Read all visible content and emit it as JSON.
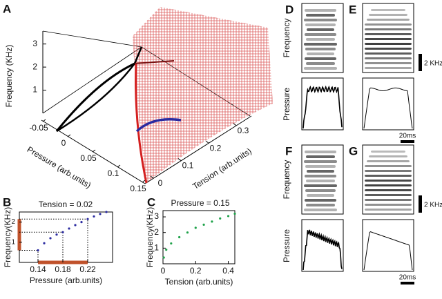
{
  "chart_data": [
    {
      "type": "surface3d",
      "label": "A",
      "zlabel": "Frequency (KHz)",
      "xlabel": "Pressure (arb.units)",
      "ylabel": "Tension (arb.units)",
      "xlim": [
        -0.05,
        0.15
      ],
      "xticks": [
        -0.05,
        0,
        0.05,
        0.1,
        0.15
      ],
      "ylim": [
        0,
        0.35
      ],
      "yticks": [
        0,
        0.1,
        0.2,
        0.3
      ],
      "zlim": [
        0,
        3.5
      ],
      "zticks": [
        1,
        2,
        3
      ]
    },
    {
      "type": "line",
      "label": "B",
      "title": "Tension = 0.02",
      "xlabel": "Pressure (arb.units)",
      "ylabel": "Frequency(KHz)",
      "x": [
        0.14,
        0.15,
        0.16,
        0.17,
        0.18,
        0.19,
        0.2,
        0.21,
        0.22,
        0.23,
        0.24,
        0.25
      ],
      "series": [
        {
          "color": "#2a2aa0",
          "values": [
            0.6,
            0.95,
            1.2,
            1.38,
            1.5,
            1.68,
            1.85,
            2.0,
            2.15,
            2.28,
            2.4,
            2.5
          ]
        }
      ],
      "xlim": [
        0.11,
        0.26
      ],
      "xticks": [
        0.14,
        0.18,
        0.22
      ],
      "ylim": [
        0,
        2.5
      ],
      "yticks": [
        1,
        2
      ]
    },
    {
      "type": "line",
      "label": "C",
      "title": "Pressure = 0.15",
      "xlabel": "Tension (arb.units)",
      "ylabel": "Frequency(KHz)",
      "x": [
        0.005,
        0.02,
        0.05,
        0.1,
        0.15,
        0.2,
        0.25,
        0.3,
        0.35,
        0.4,
        0.44
      ],
      "series": [
        {
          "color": "#1fa24a",
          "values": [
            0.4,
            0.9,
            1.3,
            1.7,
            2.0,
            2.3,
            2.5,
            2.7,
            2.9,
            3.05,
            3.2
          ]
        }
      ],
      "xlim": [
        0,
        0.44
      ],
      "xticks": [
        0,
        0.2,
        0.4
      ],
      "ylim": [
        0,
        3.4
      ],
      "yticks": [
        1,
        2,
        3
      ]
    }
  ],
  "panels": [
    {
      "label": "D",
      "frequency_label": "Frequency",
      "pressure_label": "Pressure"
    },
    {
      "label": "E",
      "frequency_scale": "2 KHz",
      "time_scale": "20ms"
    },
    {
      "label": "F",
      "frequency_label": "Frequency",
      "pressure_label": "Pressure"
    },
    {
      "label": "G",
      "frequency_scale": "2 KHz",
      "time_scale": "20ms"
    }
  ]
}
